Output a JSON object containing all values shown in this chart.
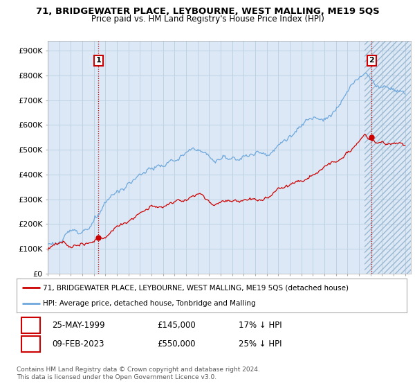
{
  "title": "71, BRIDGEWATER PLACE, LEYBOURNE, WEST MALLING, ME19 5QS",
  "subtitle": "Price paid vs. HM Land Registry's House Price Index (HPI)",
  "ylabel_ticks": [
    "£0",
    "£100K",
    "£200K",
    "£300K",
    "£400K",
    "£500K",
    "£600K",
    "£700K",
    "£800K",
    "£900K"
  ],
  "ytick_values": [
    0,
    100000,
    200000,
    300000,
    400000,
    500000,
    600000,
    700000,
    800000,
    900000
  ],
  "ylim": [
    0,
    940000
  ],
  "xlim_start": 1995.0,
  "xlim_end": 2026.5,
  "hpi_color": "#6fa8dc",
  "price_color": "#cc0000",
  "point1_year": 1999.4,
  "point1_value": 145000,
  "point2_year": 2023.1,
  "point2_value": 550000,
  "vline_color": "#cc0000",
  "vline_style": ":",
  "chart_bg": "#dce8f5",
  "legend_label1": "71, BRIDGEWATER PLACE, LEYBOURNE, WEST MALLING, ME19 5QS (detached house)",
  "legend_label2": "HPI: Average price, detached house, Tonbridge and Malling",
  "table_row1": [
    "1",
    "25-MAY-1999",
    "£145,000",
    "17% ↓ HPI"
  ],
  "table_row2": [
    "2",
    "09-FEB-2023",
    "£550,000",
    "25% ↓ HPI"
  ],
  "footer": "Contains HM Land Registry data © Crown copyright and database right 2024.\nThis data is licensed under the Open Government Licence v3.0.",
  "background_color": "#ffffff",
  "grid_color": "#b8cfe0"
}
